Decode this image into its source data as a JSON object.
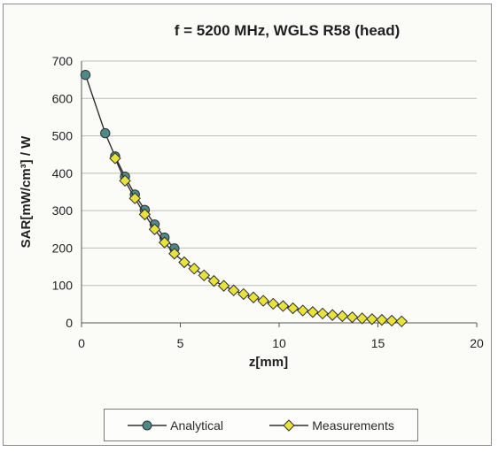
{
  "chart_data": {
    "type": "line",
    "title": "f = 5200 MHz, WGLS R58 (head)",
    "xlabel": "z[mm]",
    "ylabel": "SAR[mW/cm³] / W",
    "xlim": [
      0,
      20
    ],
    "ylim": [
      0,
      700
    ],
    "xticks": [
      0,
      5,
      10,
      15,
      20
    ],
    "yticks": [
      0,
      100,
      200,
      300,
      400,
      500,
      600,
      700
    ],
    "grid": "horizontal",
    "legend_position": "bottom",
    "series": [
      {
        "name": "Analytical",
        "color": "#4e8a86",
        "marker": "circle",
        "x": [
          0.2,
          1.2,
          1.7,
          2.2,
          2.7,
          3.2,
          3.7,
          4.2,
          4.7
        ],
        "y": [
          663,
          507,
          445,
          391,
          343,
          302,
          263,
          228,
          199
        ]
      },
      {
        "name": "Measurements",
        "color": "#e8e33c",
        "marker": "diamond",
        "x": [
          1.7,
          2.2,
          2.7,
          3.2,
          3.7,
          4.2,
          4.7,
          5.2,
          5.7,
          6.2,
          6.7,
          7.2,
          7.7,
          8.2,
          8.7,
          9.2,
          9.7,
          10.2,
          10.7,
          11.2,
          11.7,
          12.2,
          12.7,
          13.2,
          13.7,
          14.2,
          14.7,
          15.2,
          15.7,
          16.2
        ],
        "y": [
          440,
          380,
          333,
          290,
          250,
          215,
          185,
          162,
          145,
          127,
          112,
          99,
          87,
          77,
          68,
          59,
          51,
          45,
          39,
          33,
          29,
          25,
          21,
          18,
          15,
          12,
          10,
          8,
          6,
          4
        ]
      }
    ]
  }
}
